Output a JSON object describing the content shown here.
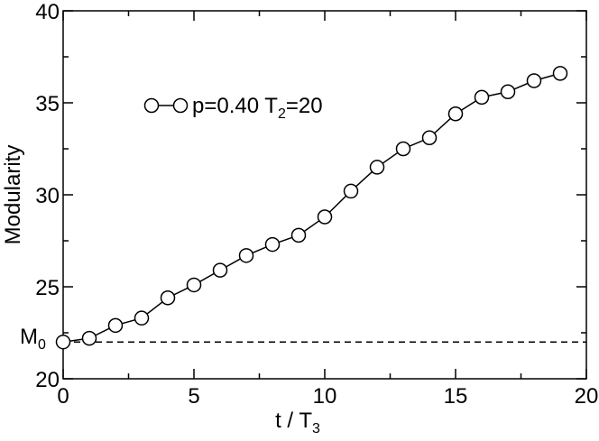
{
  "chart_data": {
    "type": "line",
    "xlabel": "t / T",
    "xlabel_sub": "3",
    "ylabel": "Modularity",
    "xlim": [
      0,
      20
    ],
    "ylim": [
      20,
      40
    ],
    "xticks": [
      0,
      5,
      10,
      15,
      20
    ],
    "yticks": [
      20,
      25,
      30,
      35,
      40
    ],
    "reference_line": {
      "label": "M",
      "label_sub": "0",
      "y": 22.0,
      "style": "dashed"
    },
    "legend": {
      "placement": "top-left",
      "text_main": "p=0.40 T",
      "text_sub": "2",
      "text_tail": "=20"
    },
    "series": [
      {
        "name": "p=0.40 T2=20",
        "marker": "open-circle",
        "color": "#000000",
        "x": [
          0,
          1,
          2,
          3,
          4,
          5,
          6,
          7,
          8,
          9,
          10,
          11,
          12,
          13,
          14,
          15,
          16,
          17,
          18,
          19
        ],
        "y": [
          22.0,
          22.2,
          22.9,
          23.3,
          24.4,
          25.1,
          25.9,
          26.7,
          27.3,
          27.8,
          28.8,
          30.2,
          31.5,
          32.5,
          33.1,
          34.4,
          35.3,
          35.6,
          36.2,
          36.6
        ]
      }
    ]
  }
}
